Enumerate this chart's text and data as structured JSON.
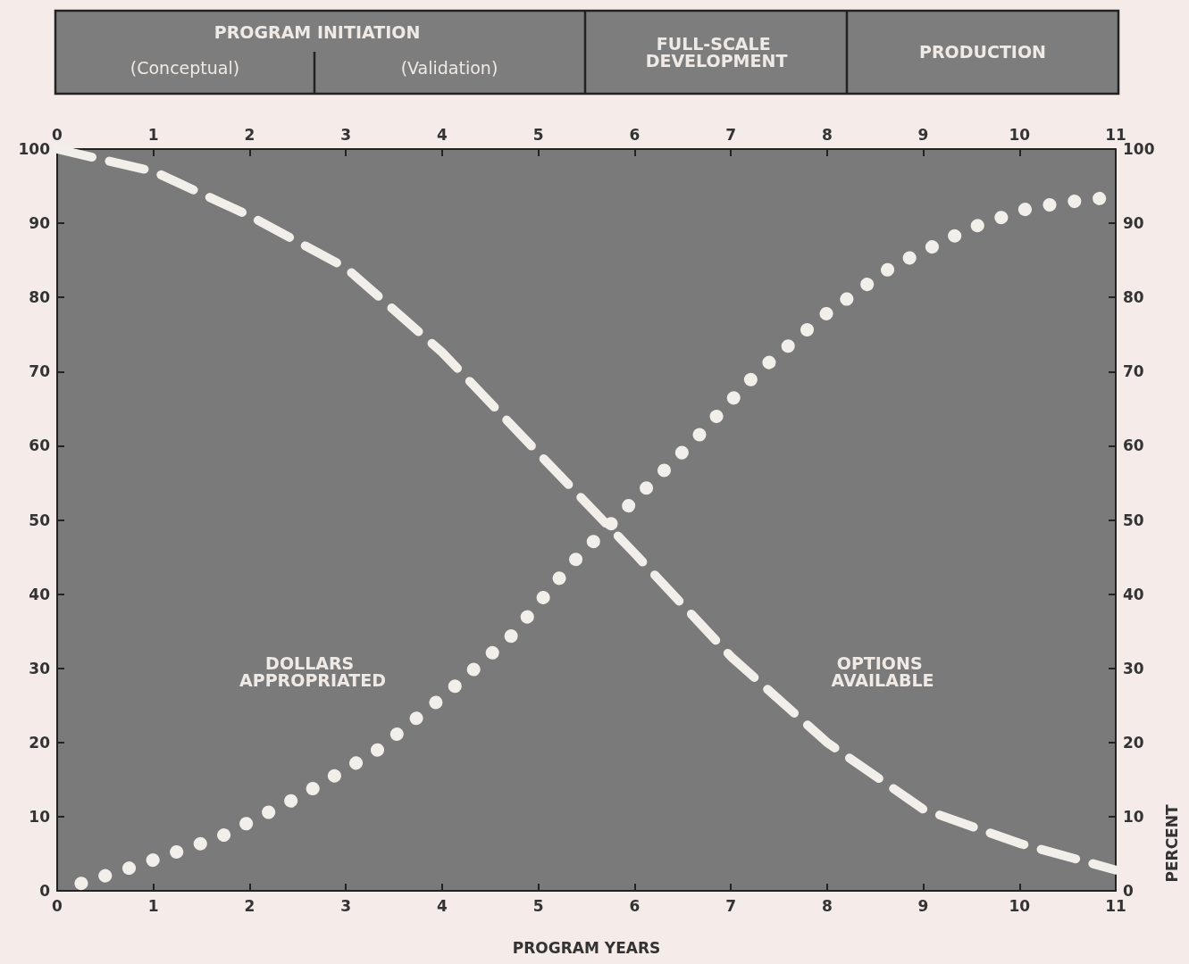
{
  "chart_data": {
    "type": "line",
    "xlabel": "PROGRAM YEARS",
    "y2label": "PERCENT",
    "xlim": [
      0,
      11
    ],
    "xticks": [
      0,
      1,
      2,
      3,
      4,
      5,
      6,
      7,
      8,
      9,
      10,
      11
    ],
    "x2lim": [
      0,
      11
    ],
    "x2ticks": [
      0,
      1,
      2,
      3,
      4,
      5,
      6,
      7,
      8,
      9,
      10,
      11
    ],
    "ylim": [
      0,
      100
    ],
    "yticks": [
      0,
      10,
      20,
      30,
      40,
      50,
      60,
      70,
      80,
      90,
      100
    ],
    "y2lim": [
      0,
      100
    ],
    "y2ticks": [
      0,
      10,
      20,
      30,
      40,
      50,
      60,
      70,
      80,
      90,
      100
    ],
    "grid": false,
    "series": [
      {
        "color": "#f2eeea",
        "line_style": "dashed",
        "x": [
          0,
          1,
          2,
          3,
          4,
          5,
          6,
          7,
          8,
          9,
          10,
          11
        ],
        "values": [
          100,
          97,
          91,
          84,
          72.6,
          59,
          45.5,
          31.6,
          20,
          11,
          6.4,
          2.8
        ]
      },
      {
        "color": "#f2eeea",
        "line_style": "dotted",
        "x": [
          0.25,
          0.83,
          1.7,
          2.53,
          3.31,
          4.04,
          4.73,
          5.33,
          5.96,
          6.61,
          7.27,
          7.96,
          8.68,
          9.5,
          10.11,
          10.75,
          10.97
        ],
        "values": [
          1,
          3.4,
          7.3,
          12.8,
          18.8,
          26.5,
          34.5,
          43.9,
          52.2,
          60.6,
          69.8,
          77.5,
          84.2,
          89.4,
          92.1,
          93.3,
          93.4
        ]
      }
    ],
    "annotations": [
      "PROGRAM INITIATION",
      "(Conceptual)",
      "(Validation)",
      "FULL-SCALE DEVELOPMENT",
      "PRODUCTION",
      "DOLLARS APPROPRIATED",
      "OPTIONS AVAILABLE"
    ]
  }
}
